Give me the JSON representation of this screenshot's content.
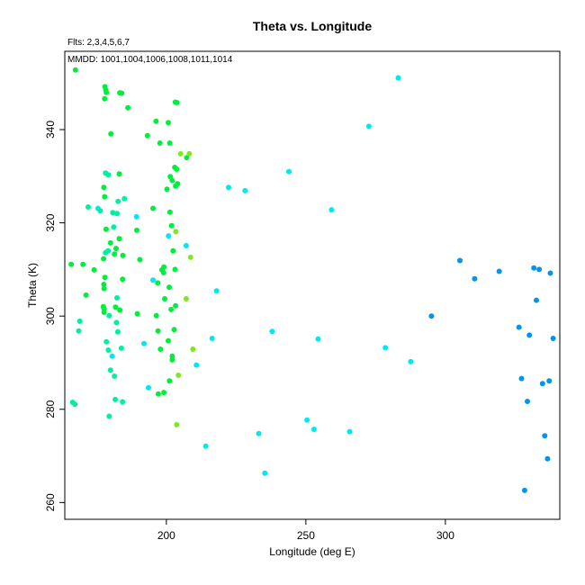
{
  "chart_data": {
    "type": "scatter",
    "title": "Theta vs. Longitude",
    "annotations": [
      "Flts: 2,3,4,5,6,7",
      "MMDD: 1001,1004,1006,1008,1011,1014"
    ],
    "xlabel": "Longitude (deg E)",
    "ylabel": "Theta (K)",
    "xlim": [
      163.6,
      341.0
    ],
    "ylim": [
      256.4,
      356.8
    ],
    "xticks": [
      200,
      250,
      300
    ],
    "yticks": [
      260,
      280,
      300,
      320,
      340
    ],
    "grid": false,
    "legend": "none",
    "colors": {
      "green": "#00ee3c",
      "cyan_green": "#00f0a0",
      "cyan": "#00e8f0",
      "yellow_green": "#80e820",
      "blue": "#0096ee"
    },
    "points": [
      {
        "x": 167.4,
        "y": 352.8,
        "c": "green"
      },
      {
        "x": 165.9,
        "y": 311.1,
        "c": "green"
      },
      {
        "x": 170.1,
        "y": 311.1,
        "c": "green"
      },
      {
        "x": 171.2,
        "y": 304.5,
        "c": "green"
      },
      {
        "x": 169.0,
        "y": 298.9,
        "c": "cyan_green"
      },
      {
        "x": 168.6,
        "y": 296.8,
        "c": "cyan_green"
      },
      {
        "x": 166.4,
        "y": 281.5,
        "c": "cyan_green"
      },
      {
        "x": 167.2,
        "y": 281.1,
        "c": "cyan_green"
      },
      {
        "x": 172.0,
        "y": 323.4,
        "c": "cyan_green"
      },
      {
        "x": 174.1,
        "y": 309.9,
        "c": "green"
      },
      {
        "x": 175.5,
        "y": 323.1,
        "c": "cyan"
      },
      {
        "x": 176.3,
        "y": 322.6,
        "c": "cyan_green"
      },
      {
        "x": 178.0,
        "y": 349.2,
        "c": "green"
      },
      {
        "x": 178.3,
        "y": 348.5,
        "c": "green"
      },
      {
        "x": 178.5,
        "y": 348.0,
        "c": "green"
      },
      {
        "x": 177.9,
        "y": 346.6,
        "c": "green"
      },
      {
        "x": 178.2,
        "y": 330.7,
        "c": "cyan_green"
      },
      {
        "x": 179.2,
        "y": 330.3,
        "c": "cyan_green"
      },
      {
        "x": 177.6,
        "y": 327.6,
        "c": "green"
      },
      {
        "x": 177.9,
        "y": 325.6,
        "c": "green"
      },
      {
        "x": 178.4,
        "y": 318.6,
        "c": "green"
      },
      {
        "x": 179.1,
        "y": 314.0,
        "c": "cyan_green"
      },
      {
        "x": 178.2,
        "y": 313.6,
        "c": "cyan_green"
      },
      {
        "x": 177.5,
        "y": 312.3,
        "c": "green"
      },
      {
        "x": 178.0,
        "y": 308.3,
        "c": "green"
      },
      {
        "x": 177.6,
        "y": 306.8,
        "c": "green"
      },
      {
        "x": 177.7,
        "y": 305.9,
        "c": "green"
      },
      {
        "x": 177.4,
        "y": 302.0,
        "c": "green"
      },
      {
        "x": 177.7,
        "y": 301.5,
        "c": "green"
      },
      {
        "x": 177.7,
        "y": 300.8,
        "c": "green"
      },
      {
        "x": 179.5,
        "y": 300.1,
        "c": "cyan_green"
      },
      {
        "x": 178.5,
        "y": 294.5,
        "c": "cyan_green"
      },
      {
        "x": 179.2,
        "y": 292.7,
        "c": "cyan_green"
      },
      {
        "x": 180.6,
        "y": 291.4,
        "c": "cyan"
      },
      {
        "x": 180.0,
        "y": 288.4,
        "c": "cyan_green"
      },
      {
        "x": 181.4,
        "y": 287.1,
        "c": "cyan_green"
      },
      {
        "x": 181.7,
        "y": 282.1,
        "c": "cyan_green"
      },
      {
        "x": 179.5,
        "y": 278.5,
        "c": "cyan_green"
      },
      {
        "x": 180.1,
        "y": 339.1,
        "c": "green"
      },
      {
        "x": 183.3,
        "y": 347.9,
        "c": "green"
      },
      {
        "x": 184.0,
        "y": 347.8,
        "c": "green"
      },
      {
        "x": 186.2,
        "y": 344.7,
        "c": "green"
      },
      {
        "x": 183.1,
        "y": 330.5,
        "c": "green"
      },
      {
        "x": 185.0,
        "y": 325.2,
        "c": "cyan_green"
      },
      {
        "x": 182.7,
        "y": 324.6,
        "c": "cyan_green"
      },
      {
        "x": 180.8,
        "y": 322.2,
        "c": "cyan_green"
      },
      {
        "x": 182.3,
        "y": 322.0,
        "c": "cyan_green"
      },
      {
        "x": 181.1,
        "y": 319.1,
        "c": "cyan_green"
      },
      {
        "x": 183.1,
        "y": 316.6,
        "c": "green"
      },
      {
        "x": 180.0,
        "y": 315.7,
        "c": "green"
      },
      {
        "x": 182.0,
        "y": 314.5,
        "c": "green"
      },
      {
        "x": 181.4,
        "y": 313.3,
        "c": "green"
      },
      {
        "x": 184.4,
        "y": 313.0,
        "c": "green"
      },
      {
        "x": 184.3,
        "y": 307.9,
        "c": "green"
      },
      {
        "x": 182.3,
        "y": 303.9,
        "c": "cyan_green"
      },
      {
        "x": 181.8,
        "y": 301.9,
        "c": "green"
      },
      {
        "x": 183.3,
        "y": 301.3,
        "c": "green"
      },
      {
        "x": 182.1,
        "y": 298.6,
        "c": "cyan_green"
      },
      {
        "x": 182.6,
        "y": 296.6,
        "c": "cyan_green"
      },
      {
        "x": 183.9,
        "y": 293.1,
        "c": "cyan_green"
      },
      {
        "x": 184.3,
        "y": 281.6,
        "c": "cyan_green"
      },
      {
        "x": 189.3,
        "y": 321.3,
        "c": "cyan"
      },
      {
        "x": 189.4,
        "y": 318.4,
        "c": "green"
      },
      {
        "x": 190.5,
        "y": 312.1,
        "c": "green"
      },
      {
        "x": 189.6,
        "y": 300.5,
        "c": "green"
      },
      {
        "x": 192.0,
        "y": 294.1,
        "c": "cyan"
      },
      {
        "x": 193.6,
        "y": 284.6,
        "c": "cyan"
      },
      {
        "x": 193.2,
        "y": 338.7,
        "c": "green"
      },
      {
        "x": 196.3,
        "y": 341.8,
        "c": "green"
      },
      {
        "x": 195.2,
        "y": 323.1,
        "c": "green"
      },
      {
        "x": 195.2,
        "y": 307.7,
        "c": "cyan"
      },
      {
        "x": 196.9,
        "y": 307.1,
        "c": "green"
      },
      {
        "x": 196.4,
        "y": 300.1,
        "c": "green"
      },
      {
        "x": 197.0,
        "y": 296.8,
        "c": "green"
      },
      {
        "x": 197.9,
        "y": 292.9,
        "c": "green"
      },
      {
        "x": 197.1,
        "y": 283.3,
        "c": "green"
      },
      {
        "x": 199.1,
        "y": 283.6,
        "c": "green"
      },
      {
        "x": 198.4,
        "y": 309.9,
        "c": "green"
      },
      {
        "x": 199.0,
        "y": 309.3,
        "c": "green"
      },
      {
        "x": 199.4,
        "y": 303.7,
        "c": "green"
      },
      {
        "x": 197.7,
        "y": 337.1,
        "c": "green"
      },
      {
        "x": 200.7,
        "y": 341.5,
        "c": "green"
      },
      {
        "x": 200.2,
        "y": 327.2,
        "c": "green"
      },
      {
        "x": 200.8,
        "y": 317.2,
        "c": "cyan"
      },
      {
        "x": 199.1,
        "y": 310.5,
        "c": "green"
      },
      {
        "x": 201.2,
        "y": 337.1,
        "c": "green"
      },
      {
        "x": 201.4,
        "y": 329.9,
        "c": "green"
      },
      {
        "x": 201.3,
        "y": 322.3,
        "c": "green"
      },
      {
        "x": 201.9,
        "y": 319.4,
        "c": "green"
      },
      {
        "x": 202.4,
        "y": 314.0,
        "c": "green"
      },
      {
        "x": 203.1,
        "y": 310.0,
        "c": "green"
      },
      {
        "x": 201.0,
        "y": 306.2,
        "c": "green"
      },
      {
        "x": 203.3,
        "y": 302.2,
        "c": "green"
      },
      {
        "x": 201.7,
        "y": 301.4,
        "c": "green"
      },
      {
        "x": 202.8,
        "y": 297.1,
        "c": "green"
      },
      {
        "x": 200.7,
        "y": 294.7,
        "c": "green"
      },
      {
        "x": 202.1,
        "y": 291.4,
        "c": "green"
      },
      {
        "x": 202.1,
        "y": 290.6,
        "c": "green"
      },
      {
        "x": 201.1,
        "y": 286.1,
        "c": "green"
      },
      {
        "x": 203.2,
        "y": 345.9,
        "c": "green"
      },
      {
        "x": 203.8,
        "y": 345.8,
        "c": "green"
      },
      {
        "x": 203.0,
        "y": 331.9,
        "c": "green"
      },
      {
        "x": 203.7,
        "y": 331.5,
        "c": "green"
      },
      {
        "x": 204.0,
        "y": 328.4,
        "c": "green"
      },
      {
        "x": 203.3,
        "y": 327.9,
        "c": "green"
      },
      {
        "x": 202.1,
        "y": 329.1,
        "c": "green"
      },
      {
        "x": 205.1,
        "y": 334.8,
        "c": "yellow_green"
      },
      {
        "x": 207.3,
        "y": 334.0,
        "c": "green"
      },
      {
        "x": 208.2,
        "y": 334.8,
        "c": "yellow_green"
      },
      {
        "x": 203.4,
        "y": 318.1,
        "c": "yellow_green"
      },
      {
        "x": 207.1,
        "y": 315.1,
        "c": "cyan"
      },
      {
        "x": 208.7,
        "y": 312.6,
        "c": "yellow_green"
      },
      {
        "x": 207.1,
        "y": 303.7,
        "c": "yellow_green"
      },
      {
        "x": 209.5,
        "y": 292.9,
        "c": "yellow_green"
      },
      {
        "x": 210.8,
        "y": 289.5,
        "c": "cyan"
      },
      {
        "x": 204.3,
        "y": 287.3,
        "c": "yellow_green"
      },
      {
        "x": 203.7,
        "y": 276.7,
        "c": "yellow_green"
      },
      {
        "x": 214.1,
        "y": 272.1,
        "c": "cyan"
      },
      {
        "x": 216.4,
        "y": 295.2,
        "c": "cyan"
      },
      {
        "x": 218.0,
        "y": 305.4,
        "c": "cyan"
      },
      {
        "x": 222.3,
        "y": 327.6,
        "c": "cyan"
      },
      {
        "x": 228.2,
        "y": 326.9,
        "c": "cyan"
      },
      {
        "x": 233.1,
        "y": 274.8,
        "c": "cyan"
      },
      {
        "x": 235.3,
        "y": 266.3,
        "c": "cyan"
      },
      {
        "x": 237.9,
        "y": 296.7,
        "c": "cyan"
      },
      {
        "x": 243.9,
        "y": 331.0,
        "c": "cyan"
      },
      {
        "x": 250.4,
        "y": 277.7,
        "c": "cyan"
      },
      {
        "x": 252.9,
        "y": 275.7,
        "c": "cyan"
      },
      {
        "x": 254.4,
        "y": 295.1,
        "c": "cyan"
      },
      {
        "x": 259.2,
        "y": 322.8,
        "c": "cyan"
      },
      {
        "x": 265.7,
        "y": 275.2,
        "c": "cyan"
      },
      {
        "x": 272.6,
        "y": 340.7,
        "c": "cyan"
      },
      {
        "x": 278.5,
        "y": 293.2,
        "c": "cyan"
      },
      {
        "x": 283.1,
        "y": 351.1,
        "c": "cyan"
      },
      {
        "x": 287.6,
        "y": 290.2,
        "c": "cyan"
      },
      {
        "x": 295.0,
        "y": 300.0,
        "c": "blue"
      },
      {
        "x": 305.2,
        "y": 311.9,
        "c": "blue"
      },
      {
        "x": 310.5,
        "y": 308.0,
        "c": "blue"
      },
      {
        "x": 319.3,
        "y": 309.6,
        "c": "blue"
      },
      {
        "x": 326.4,
        "y": 297.6,
        "c": "blue"
      },
      {
        "x": 327.3,
        "y": 286.6,
        "c": "blue"
      },
      {
        "x": 328.4,
        "y": 262.6,
        "c": "blue"
      },
      {
        "x": 329.4,
        "y": 281.7,
        "c": "blue"
      },
      {
        "x": 330.1,
        "y": 295.9,
        "c": "blue"
      },
      {
        "x": 331.7,
        "y": 310.3,
        "c": "blue"
      },
      {
        "x": 333.6,
        "y": 310.0,
        "c": "blue"
      },
      {
        "x": 332.6,
        "y": 303.4,
        "c": "blue"
      },
      {
        "x": 334.8,
        "y": 285.5,
        "c": "blue"
      },
      {
        "x": 335.6,
        "y": 274.3,
        "c": "blue"
      },
      {
        "x": 336.6,
        "y": 269.4,
        "c": "blue"
      },
      {
        "x": 337.2,
        "y": 286.1,
        "c": "blue"
      },
      {
        "x": 337.6,
        "y": 309.2,
        "c": "blue"
      },
      {
        "x": 338.6,
        "y": 295.2,
        "c": "blue"
      }
    ]
  }
}
